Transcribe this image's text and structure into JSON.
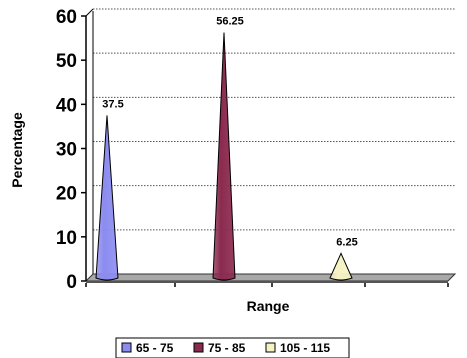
{
  "chart_data": {
    "type": "bar",
    "bar_shape": "cone",
    "xlabel": "Range",
    "ylabel": "Percentage",
    "ylim": [
      0,
      60
    ],
    "yticks": [
      0,
      10,
      20,
      30,
      40,
      50,
      60
    ],
    "grid": true,
    "legend_position": "bottom",
    "series": [
      {
        "name": "65 - 75",
        "value": 37.5,
        "label": "37.5",
        "color": "#8c8cf0"
      },
      {
        "name": "75 - 85",
        "value": 56.25,
        "label": "56.25",
        "color": "#8b2a4f"
      },
      {
        "name": "105 - 115",
        "value": 6.25,
        "label": "6.25",
        "color": "#f5f2c4"
      }
    ]
  }
}
